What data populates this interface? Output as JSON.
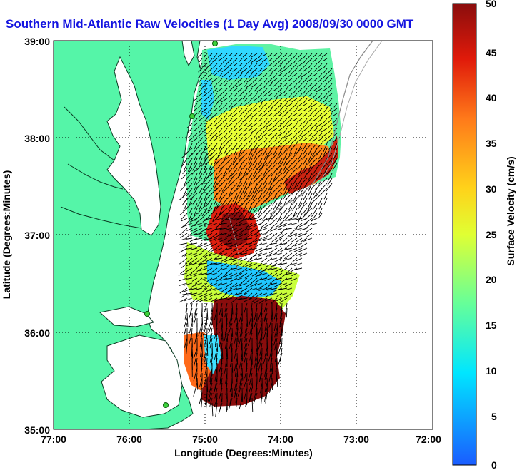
{
  "title": "Southern Mid-Atlantic Raw Velocities (1 Day Avg) 2008/09/30 0000 GMT",
  "chart_data": {
    "type": "heatmap",
    "title": "Southern Mid-Atlantic Raw Velocities (1 Day Avg) 2008/09/30 0000 GMT",
    "xlabel": "Longitude (Degrees:Minutes)",
    "ylabel": "Latitude (Degrees:Minutes)",
    "x_ticks": [
      "77:00",
      "76:00",
      "75:00",
      "74:00",
      "73:00",
      "72:00"
    ],
    "y_ticks": [
      "39:00",
      "38:00",
      "37:00",
      "36:00",
      "35:00"
    ],
    "xlim": [
      -77,
      -72
    ],
    "ylim": [
      35,
      39
    ],
    "grid": true,
    "colorbar": {
      "label": "Surface Velocity (cm/s)",
      "range": [
        0,
        50
      ],
      "ticks": [
        "50",
        "45",
        "40",
        "35",
        "30",
        "25",
        "20",
        "15",
        "10",
        "5",
        "0"
      ]
    },
    "stations": [
      {
        "lon": -74.85,
        "lat": 38.98
      },
      {
        "lon": -75.15,
        "lat": 38.2
      },
      {
        "lon": -75.7,
        "lat": 36.18
      },
      {
        "lon": -75.45,
        "lat": 35.25
      }
    ]
  },
  "colors": {
    "land": "#55f5a8",
    "coastline": "#0a3a22",
    "title": "#1414e0"
  }
}
